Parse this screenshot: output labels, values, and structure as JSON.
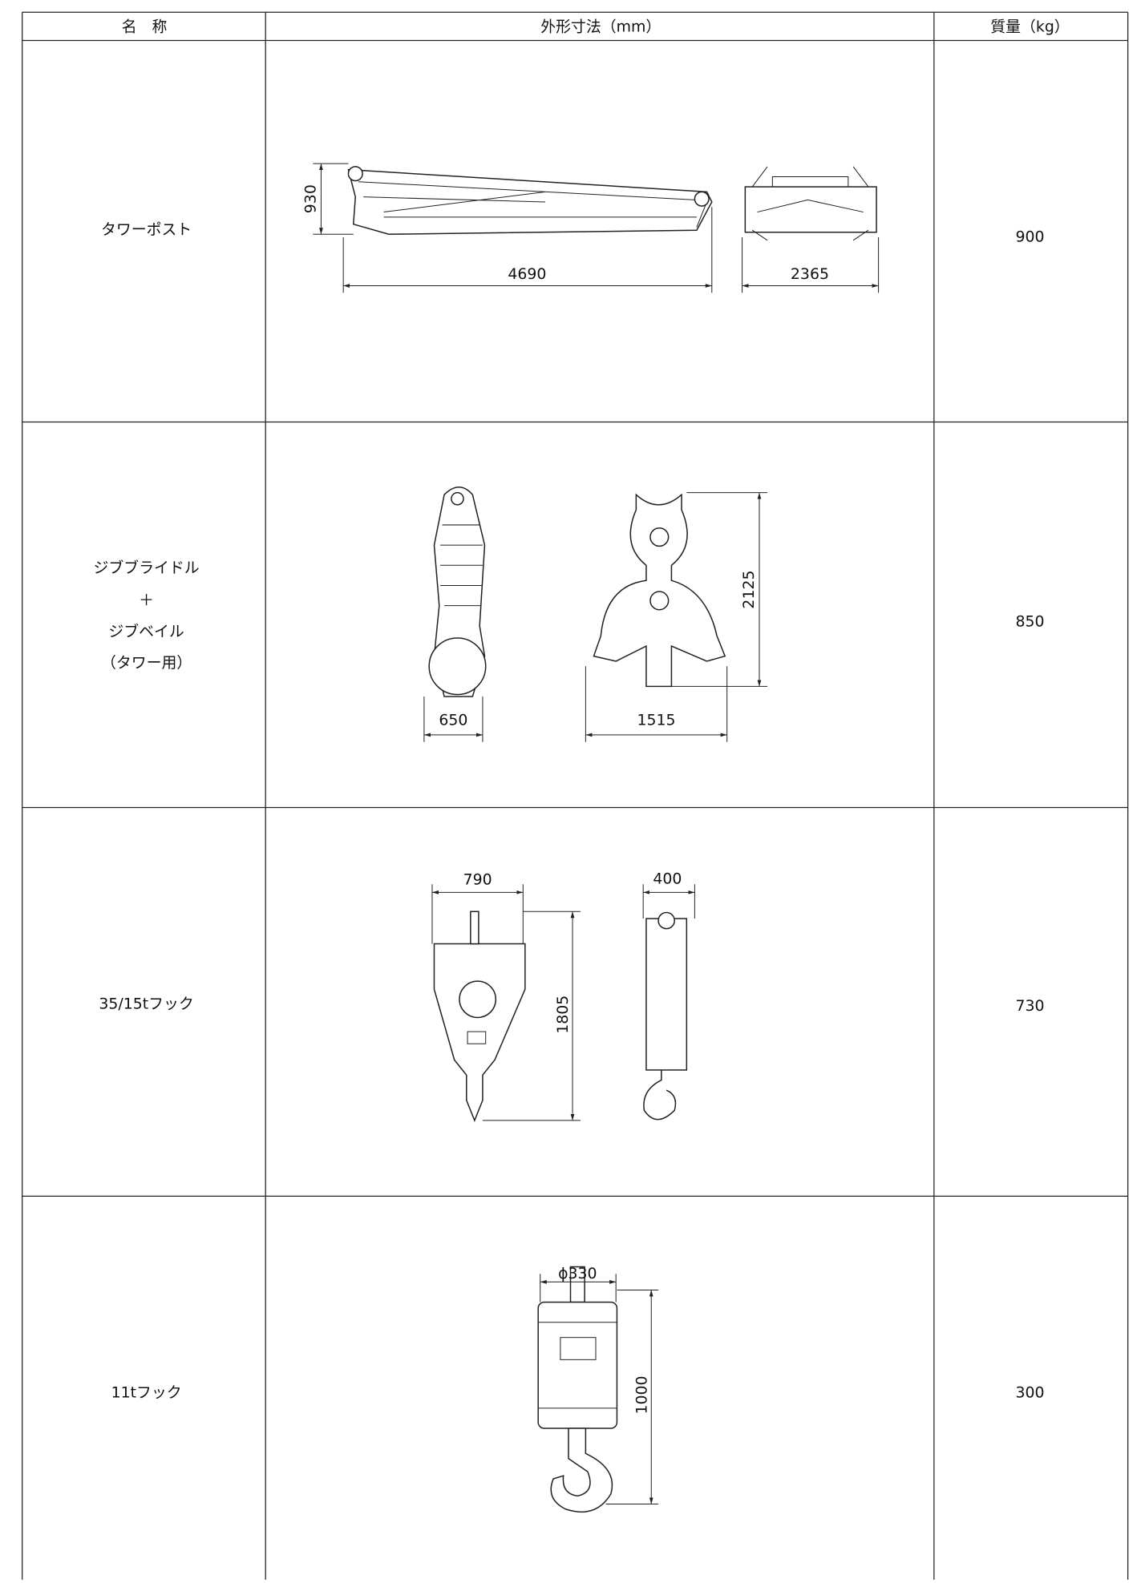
{
  "table": {
    "header": [
      "名　称",
      "外形寸法（mm）",
      "質量（kg）"
    ],
    "rows": [
      {
        "name": [
          "タワーポスト"
        ],
        "dimensions": [
          "930",
          "4690",
          "2365"
        ],
        "mass": "900"
      },
      {
        "name": [
          "ジブブライドル",
          "＋",
          "ジブベイル",
          "（タワー用）"
        ],
        "dimensions": [
          "2125",
          "650",
          "1515"
        ],
        "mass": "850"
      },
      {
        "name": [
          "35/15tフック"
        ],
        "dimensions": [
          "790",
          "400",
          "1805"
        ],
        "mass": "730"
      },
      {
        "name": [
          "11tフック"
        ],
        "dimensions": [
          "ϕ330",
          "1000"
        ],
        "mass": "300"
      }
    ]
  }
}
